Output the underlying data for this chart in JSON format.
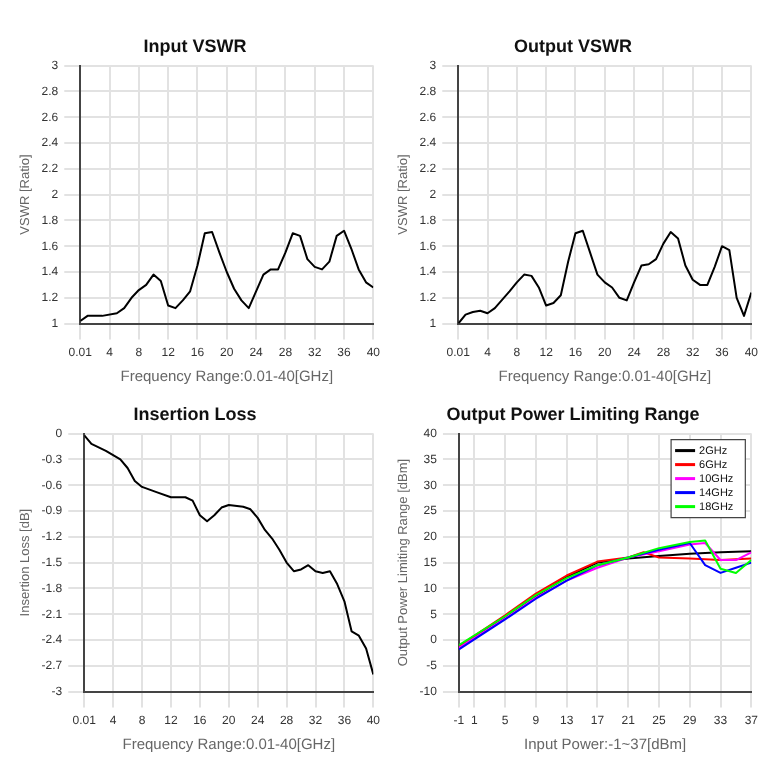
{
  "chart_data": [
    {
      "type": "line",
      "title": "Input VSWR",
      "xlabel": "Frequency Range:0.01-40[GHz]",
      "ylabel": "VSWR [Ratio]",
      "xlim": [
        0.01,
        40
      ],
      "xticks": [
        0.01,
        4,
        8,
        12,
        16,
        20,
        24,
        28,
        32,
        36,
        40
      ],
      "ylim": [
        1,
        3
      ],
      "yticks": [
        1,
        1.2,
        1.4,
        1.6,
        1.8,
        2,
        2.2,
        2.4,
        2.6,
        2.8,
        3
      ],
      "grid": true,
      "series": [
        {
          "color": "#000000",
          "x": [
            0.01,
            1,
            3,
            5,
            6,
            7,
            8,
            9,
            10,
            11,
            12,
            13,
            14,
            15,
            16,
            17,
            18,
            19,
            20,
            21,
            22,
            23,
            24,
            25,
            26,
            27,
            28,
            29,
            30,
            31,
            32,
            33,
            34,
            35,
            36,
            37,
            38,
            39,
            40
          ],
          "values": [
            1.02,
            1.06,
            1.06,
            1.08,
            1.12,
            1.2,
            1.26,
            1.3,
            1.38,
            1.33,
            1.14,
            1.12,
            1.18,
            1.25,
            1.45,
            1.7,
            1.71,
            1.55,
            1.4,
            1.27,
            1.18,
            1.12,
            1.25,
            1.38,
            1.42,
            1.42,
            1.55,
            1.7,
            1.68,
            1.5,
            1.44,
            1.42,
            1.48,
            1.68,
            1.72,
            1.58,
            1.42,
            1.32,
            1.28
          ]
        }
      ]
    },
    {
      "type": "line",
      "title": "Output VSWR",
      "xlabel": "Frequency Range:0.01-40[GHz]",
      "ylabel": "VSWR [Ratio]",
      "xlim": [
        0.01,
        40
      ],
      "xticks": [
        0.01,
        4,
        8,
        12,
        16,
        20,
        24,
        28,
        32,
        36,
        40
      ],
      "ylim": [
        1,
        3
      ],
      "yticks": [
        1,
        1.2,
        1.4,
        1.6,
        1.8,
        2,
        2.2,
        2.4,
        2.6,
        2.8,
        3
      ],
      "grid": true,
      "series": [
        {
          "color": "#000000",
          "x": [
            0.01,
            1,
            2,
            3,
            4,
            5,
            7,
            8,
            9,
            10,
            11,
            12,
            13,
            14,
            15,
            16,
            17,
            18,
            19,
            20,
            21,
            22,
            23,
            24,
            25,
            26,
            27,
            28,
            29,
            30,
            31,
            32,
            33,
            34,
            35,
            36,
            37,
            38,
            39,
            40
          ],
          "values": [
            1.0,
            1.07,
            1.09,
            1.1,
            1.08,
            1.12,
            1.25,
            1.32,
            1.38,
            1.37,
            1.28,
            1.14,
            1.16,
            1.22,
            1.48,
            1.7,
            1.72,
            1.55,
            1.38,
            1.32,
            1.28,
            1.2,
            1.18,
            1.32,
            1.45,
            1.46,
            1.5,
            1.62,
            1.71,
            1.66,
            1.45,
            1.34,
            1.3,
            1.3,
            1.44,
            1.6,
            1.57,
            1.2,
            1.06,
            1.24
          ]
        }
      ]
    },
    {
      "type": "line",
      "title": "Insertion Loss",
      "xlabel": "Frequency Range:0.01-40[GHz]",
      "ylabel": "Insertion Loss [dB]",
      "xlim": [
        0.01,
        40
      ],
      "xticks": [
        0.01,
        4,
        8,
        12,
        16,
        20,
        24,
        28,
        32,
        36,
        40
      ],
      "ylim": [
        -3,
        0
      ],
      "yticks": [
        -3,
        -2.7,
        -2.4,
        -2.1,
        -1.8,
        -1.5,
        -1.2,
        -0.9,
        -0.6,
        -0.3,
        0
      ],
      "grid": true,
      "series": [
        {
          "color": "#000000",
          "x": [
            0.01,
            1,
            3,
            5,
            6,
            7,
            8,
            10,
            12,
            14,
            15,
            16,
            17,
            18,
            19,
            20,
            22,
            23,
            24,
            25,
            26,
            27,
            28,
            29,
            30,
            31,
            32,
            33,
            34,
            35,
            36,
            37,
            38,
            39,
            40
          ],
          "values": [
            -0.02,
            -0.12,
            -0.2,
            -0.3,
            -0.4,
            -0.55,
            -0.62,
            -0.68,
            -0.74,
            -0.74,
            -0.78,
            -0.95,
            -1.02,
            -0.95,
            -0.86,
            -0.83,
            -0.85,
            -0.88,
            -0.98,
            -1.12,
            -1.22,
            -1.35,
            -1.5,
            -1.6,
            -1.58,
            -1.53,
            -1.6,
            -1.62,
            -1.6,
            -1.75,
            -1.95,
            -2.3,
            -2.35,
            -2.5,
            -2.8
          ]
        }
      ]
    },
    {
      "type": "line",
      "title": "Output Power Limiting Range",
      "xlabel": "Input Power:-1~37[dBm]",
      "ylabel": "Output Power Limiting Range [dBm]",
      "xlim": [
        -1,
        37
      ],
      "xticks": [
        -1,
        1,
        5,
        9,
        13,
        17,
        21,
        25,
        29,
        33,
        37
      ],
      "ylim": [
        -10,
        40
      ],
      "yticks": [
        -10,
        -5,
        0,
        5,
        10,
        15,
        20,
        25,
        30,
        35,
        40
      ],
      "grid": true,
      "legend": "top right",
      "series": [
        {
          "name": "2GHz",
          "color": "#000000",
          "x": [
            -1,
            5,
            9,
            13,
            17,
            21,
            25,
            29,
            33,
            37
          ],
          "values": [
            -1.5,
            4.5,
            8.5,
            12.2,
            15,
            15.8,
            16.3,
            16.7,
            17,
            17.2
          ]
        },
        {
          "name": "6GHz",
          "color": "#ff0000",
          "x": [
            -1,
            5,
            9,
            13,
            17,
            21,
            23,
            25,
            29,
            33,
            37
          ],
          "values": [
            -1.2,
            4.8,
            9,
            12.5,
            15.2,
            16,
            17,
            16,
            15.8,
            15.5,
            15.8
          ]
        },
        {
          "name": "10GHz",
          "color": "#ff00ff",
          "x": [
            -1,
            5,
            9,
            13,
            17,
            21,
            25,
            29,
            31,
            33,
            35,
            37
          ],
          "values": [
            -1.5,
            4.2,
            8.2,
            11.5,
            14,
            16,
            17.2,
            18.5,
            18.8,
            15.5,
            15.5,
            17
          ]
        },
        {
          "name": "14GHz",
          "color": "#0000ff",
          "x": [
            -1,
            5,
            9,
            13,
            17,
            21,
            25,
            29,
            31,
            33,
            35,
            37
          ],
          "values": [
            -1.8,
            4,
            8,
            11.5,
            14.5,
            16,
            17.5,
            18.8,
            14.5,
            13,
            14,
            15
          ]
        },
        {
          "name": "18GHz",
          "color": "#00ff00",
          "x": [
            -1,
            5,
            9,
            13,
            17,
            21,
            25,
            29,
            31,
            33,
            35,
            37
          ],
          "values": [
            -1.0,
            4.6,
            8.7,
            12.0,
            14.5,
            16,
            17.8,
            19,
            19.3,
            13.8,
            13,
            15.5
          ]
        }
      ]
    }
  ]
}
